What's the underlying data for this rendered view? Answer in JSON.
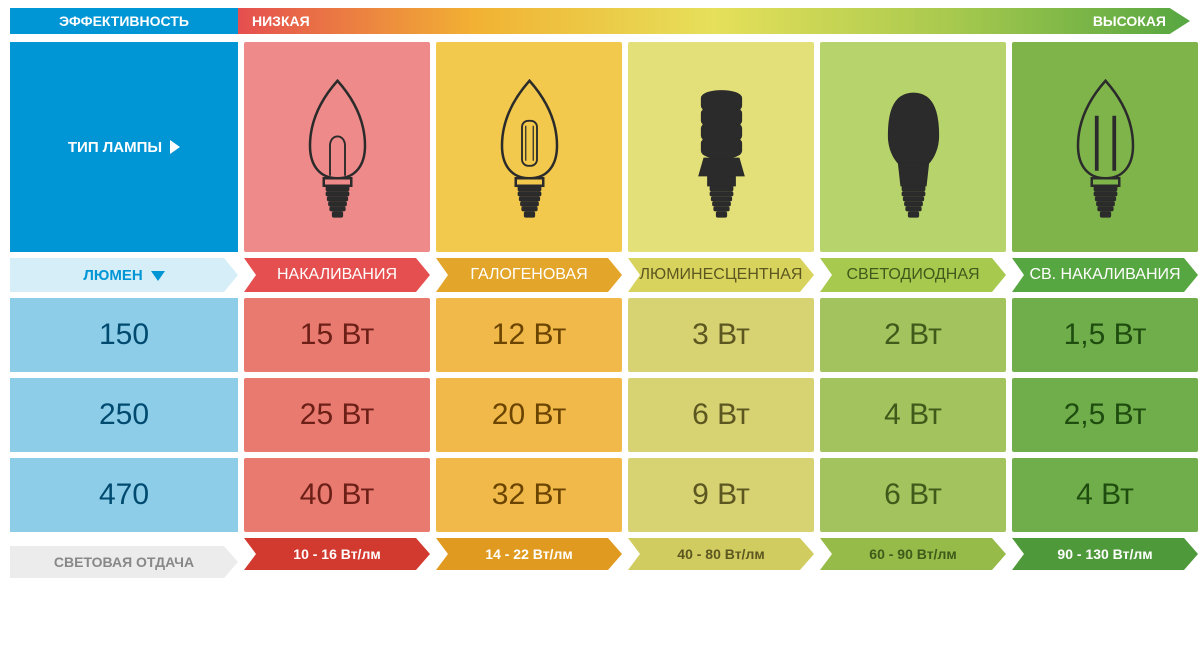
{
  "efficiency": {
    "label": "ЭФФЕКТИВНОСТЬ",
    "low": "НИЗКАЯ",
    "high": "ВЫСОКАЯ",
    "label_bg": "#0096d6",
    "gradient": [
      "#e54f4f",
      "#f2b233",
      "#e6e05a",
      "#a7c94e",
      "#56a641"
    ]
  },
  "side": {
    "lamp_type": "ТИП ЛАМПЫ",
    "lumen": "ЛЮМЕН",
    "light_output": "СВЕТОВАЯ ОТДАЧА",
    "bg": "#0096d6",
    "sub_bg": "#d6eef7",
    "sub_text": "#0096d6",
    "cell_bg": "#8dcde8",
    "cell_text": "#004a70"
  },
  "columns": [
    {
      "name": "НАКАЛИВАНИЯ",
      "hdr_bg": "#ef8a8a",
      "sub_bg": "#e54f4f",
      "sub_text": "#ffffff",
      "cell_bg": "#e97a6f",
      "cell_text": "#6b1f17",
      "icon": "candle",
      "icon_fill": "none",
      "icon_stroke": "#2b2b2b",
      "foot_bg": "#d33a2f",
      "foot_text": "#ffffff",
      "foot": "10 - 16 Вт/лм"
    },
    {
      "name": "ГАЛОГЕНОВАЯ",
      "hdr_bg": "#f2c94c",
      "sub_bg": "#e3a52a",
      "sub_text": "#ffffff",
      "cell_bg": "#f0b94a",
      "cell_text": "#6b4400",
      "icon": "halogen",
      "icon_fill": "none",
      "icon_stroke": "#2b2b2b",
      "foot_bg": "#e09a1f",
      "foot_text": "#ffffff",
      "foot": "14 - 22 Вт/лм"
    },
    {
      "name": "ЛЮМИНЕСЦЕНТНАЯ",
      "hdr_bg": "#e3e07a",
      "sub_bg": "#d8d35c",
      "sub_text": "#5c5720",
      "cell_bg": "#d7d373",
      "cell_text": "#5c5720",
      "icon": "cfl",
      "icon_fill": "#2b2b2b",
      "icon_stroke": "#2b2b2b",
      "foot_bg": "#d0cc60",
      "foot_text": "#5c5720",
      "foot": "40 - 80 Вт/лм"
    },
    {
      "name": "СВЕТОДИОДНАЯ",
      "hdr_bg": "#b7d36b",
      "sub_bg": "#a7c94e",
      "sub_text": "#3f5a1a",
      "cell_bg": "#a3c35e",
      "cell_text": "#3f5a1a",
      "icon": "led",
      "icon_fill": "#2b2b2b",
      "icon_stroke": "#2b2b2b",
      "foot_bg": "#96bb49",
      "foot_text": "#3f5a1a",
      "foot": "60 - 90 Вт/лм"
    },
    {
      "name": "СВ. НАКАЛИВАНИЯ",
      "hdr_bg": "#7fb44b",
      "sub_bg": "#56a641",
      "sub_text": "#ffffff",
      "cell_bg": "#6fae4a",
      "cell_text": "#1f4d10",
      "icon": "filament",
      "icon_fill": "none",
      "icon_stroke": "#2b2b2b",
      "foot_bg": "#4e9a3a",
      "foot_text": "#ffffff",
      "foot": "90 - 130 Вт/лм"
    }
  ],
  "rows": [
    {
      "lumen": "150",
      "values": [
        "15 Вт",
        "12 Вт",
        "3 Вт",
        "2 Вт",
        "1,5 Вт"
      ]
    },
    {
      "lumen": "250",
      "values": [
        "25 Вт",
        "20 Вт",
        "6 Вт",
        "4 Вт",
        "2,5 Вт"
      ]
    },
    {
      "lumen": "470",
      "values": [
        "40 Вт",
        "32 Вт",
        "9 Вт",
        "6 Вт",
        "4 Вт"
      ]
    }
  ]
}
